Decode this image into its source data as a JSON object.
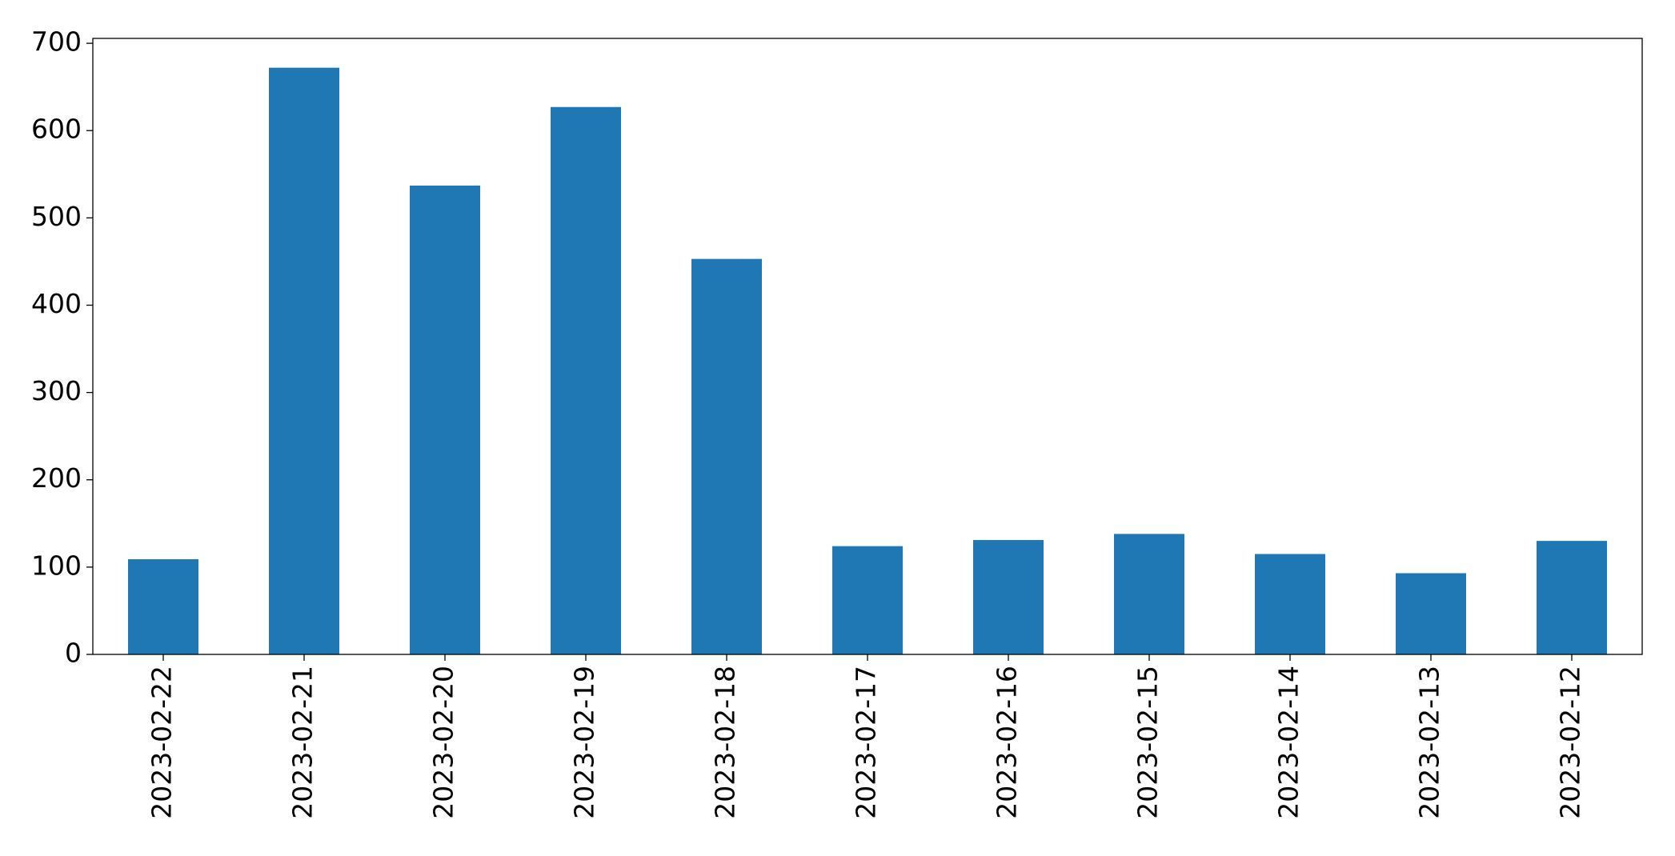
{
  "chart_data": {
    "type": "bar",
    "categories": [
      "2023-02-22",
      "2023-02-21",
      "2023-02-20",
      "2023-02-19",
      "2023-02-18",
      "2023-02-17",
      "2023-02-16",
      "2023-02-15",
      "2023-02-14",
      "2023-02-13",
      "2023-02-12"
    ],
    "values": [
      109,
      672,
      537,
      627,
      453,
      124,
      131,
      138,
      115,
      93,
      130
    ],
    "color": "#1f77b4",
    "ylim": [
      0,
      705.6
    ],
    "yticks": [
      0,
      100,
      200,
      300,
      400,
      500,
      600,
      700
    ],
    "grid": false
  }
}
